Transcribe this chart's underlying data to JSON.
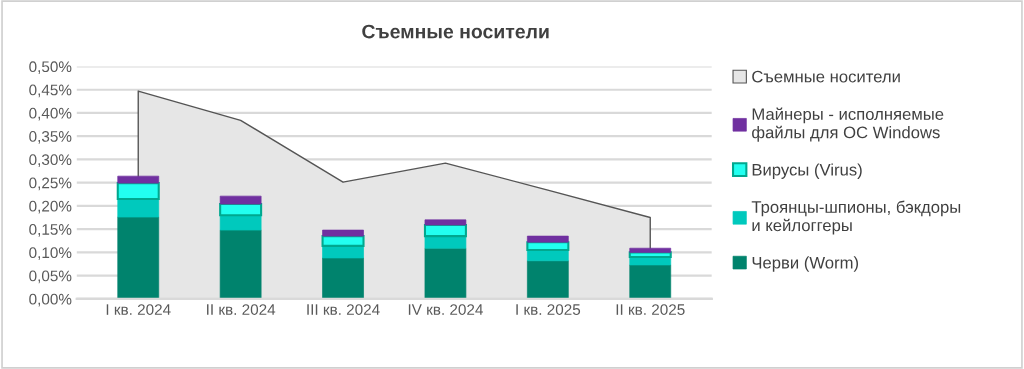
{
  "chart_data": [
    {
      "type": "area",
      "title": "Съемные носители",
      "grid": "y",
      "tick_labels": "y",
      "categories": [
        null,
        null,
        null,
        null,
        null,
        null
      ],
      "ylim": [
        0,
        0.5
      ],
      "yticks": [
        {
          "value": 0,
          "label": "0,00%"
        },
        {
          "value": 0.05,
          "label": "0,05%"
        },
        {
          "value": 0.1,
          "label": "0,10%"
        },
        {
          "value": 0.15,
          "label": "0,15%"
        },
        {
          "value": 0.2,
          "label": "0,20%"
        },
        {
          "value": 0.25,
          "label": "0,25%"
        },
        {
          "value": 0.3,
          "label": "0,30%"
        },
        {
          "value": 0.35,
          "label": "0,35%"
        },
        {
          "value": 0.4,
          "label": "0,40%"
        },
        {
          "value": 0.45,
          "label": "0,45%"
        },
        {
          "value": 0.5,
          "label": "0,50%"
        }
      ],
      "series": [
        {
          "name": "Съемные носители",
          "color": "#e6e6e6",
          "values": [
            0.447,
            0.384,
            0.251,
            0.292,
            0.234,
            0.175
          ]
        }
      ]
    },
    {
      "type": "bar",
      "stacked": true,
      "legend": "right",
      "tick_labels": "x",
      "categories": [
        "I кв. 2024",
        "II кв. 2024",
        "III кв. 2024",
        "IV кв. 2024",
        "I кв. 2025",
        "II кв. 2025"
      ],
      "ylim": [
        0,
        0.5
      ],
      "series": [
        {
          "name": "Черви (Worm)",
          "color": "#00836d",
          "values": [
            0.176,
            0.148,
            0.088,
            0.109,
            0.082,
            0.073
          ]
        },
        {
          "name": "Троянцы-шпионы, бэкдоры\nи кейлоггеры",
          "color": "#00c9bd",
          "values": [
            0.039,
            0.032,
            0.026,
            0.026,
            0.023,
            0.017
          ]
        },
        {
          "name": "Вирусы (Virus)",
          "color": "#22fff0",
          "values": [
            0.034,
            0.024,
            0.021,
            0.024,
            0.017,
            0.01
          ]
        },
        {
          "name": "Майнеры - исполняемые\nфайлы для ОС Windows",
          "color": "#7030a0",
          "values": [
            0.015,
            0.017,
            0.013,
            0.011,
            0.013,
            0.009
          ]
        }
      ]
    }
  ]
}
